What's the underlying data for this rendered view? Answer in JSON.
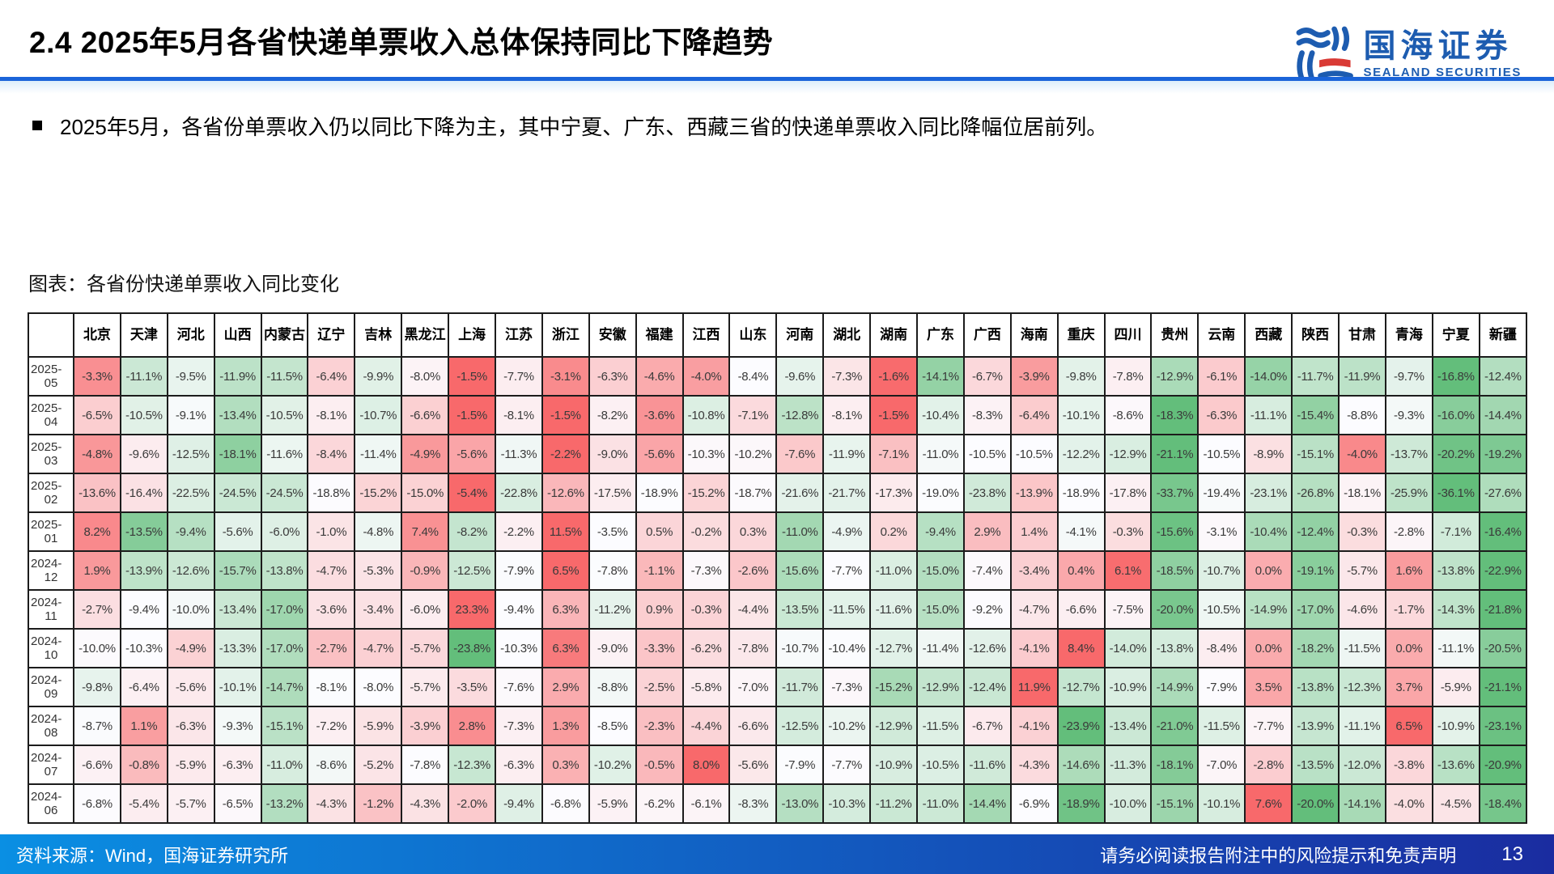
{
  "header": {
    "title": "2.4 2025年5月各省快递单票收入总体保持同比下降趋势",
    "logo_cn": "国海证券",
    "logo_en": "SEALAND SECURITIES"
  },
  "bullet": "2025年5月，各省份单票收入仍以同比下降为主，其中宁夏、广东、西藏三省的快递单票收入同比降幅位居前列。",
  "chart_label": "图表：各省份快递单票收入同比变化",
  "footer": {
    "source": "资料来源：Wind，国海证券研究所",
    "disclaimer": "请务必阅读报告附注中的风险提示和免责声明",
    "page": "13"
  },
  "colors": {
    "accent_blue": "#1B64D9",
    "logo_blue": "#1D5CB0",
    "logo_red": "#D93A35",
    "footer_left": "#0A8FE3",
    "footer_right": "#1A2CA0",
    "heat_high": "#F8696B",
    "heat_mid": "#FCFCFF",
    "heat_low": "#63BE7B"
  },
  "chart_data": {
    "type": "heatmap",
    "title": "各省份快递单票收入同比变化",
    "unit": "percent",
    "color_scale": "per-row: max=red #F8696B, median=white, min=green #63BE7B",
    "columns": [
      "北京",
      "天津",
      "河北",
      "山西",
      "内蒙古",
      "辽宁",
      "吉林",
      "黑龙江",
      "上海",
      "江苏",
      "浙江",
      "安徽",
      "福建",
      "江西",
      "山东",
      "河南",
      "湖北",
      "湖南",
      "广东",
      "广西",
      "海南",
      "重庆",
      "四川",
      "贵州",
      "云南",
      "西藏",
      "陕西",
      "甘肃",
      "青海",
      "宁夏",
      "新疆"
    ],
    "rows": [
      {
        "label": "2025-05",
        "values": [
          -3.3,
          -11.1,
          -9.5,
          -11.9,
          -11.5,
          -6.4,
          -9.9,
          -8.0,
          -1.5,
          -7.7,
          -3.1,
          -6.3,
          -4.6,
          -4.0,
          -8.4,
          -9.6,
          -7.3,
          -1.6,
          -14.1,
          -6.7,
          -3.9,
          -9.8,
          -7.8,
          -12.9,
          -6.1,
          -14.0,
          -11.7,
          -11.9,
          -9.7,
          -16.8,
          -12.4
        ]
      },
      {
        "label": "2025-04",
        "values": [
          -6.5,
          -10.5,
          -9.1,
          -13.4,
          -10.5,
          -8.1,
          -10.7,
          -6.6,
          -1.5,
          -8.1,
          -1.5,
          -8.2,
          -3.6,
          -10.8,
          -7.1,
          -12.8,
          -8.1,
          -1.5,
          -10.4,
          -8.3,
          -6.4,
          -10.1,
          -8.6,
          -18.3,
          -6.3,
          -11.1,
          -15.4,
          -8.8,
          -9.3,
          -16.0,
          -14.4
        ]
      },
      {
        "label": "2025-03",
        "values": [
          -4.8,
          -9.6,
          -12.5,
          -18.1,
          -11.6,
          -8.4,
          -11.4,
          -4.9,
          -5.6,
          -11.3,
          -2.2,
          -9.0,
          -5.6,
          -10.3,
          -10.2,
          -7.6,
          -11.9,
          -7.1,
          -11.0,
          -10.5,
          -10.5,
          -12.2,
          -12.9,
          -21.1,
          -10.5,
          -8.9,
          -15.1,
          -4.0,
          -13.7,
          -20.2,
          -19.2
        ]
      },
      {
        "label": "2025-02",
        "values": [
          -13.6,
          -16.4,
          -22.5,
          -24.5,
          -24.5,
          -18.8,
          -15.2,
          -15.0,
          -5.4,
          -22.8,
          -12.6,
          -17.5,
          -18.9,
          -15.2,
          -18.7,
          -21.6,
          -21.7,
          -17.3,
          -19.0,
          -23.8,
          -13.9,
          -18.9,
          -17.8,
          -33.7,
          -19.4,
          -23.1,
          -26.8,
          -18.1,
          -25.9,
          -36.1,
          -27.6
        ]
      },
      {
        "label": "2025-01",
        "values": [
          8.2,
          -13.5,
          -9.4,
          -5.6,
          -6.0,
          -1.0,
          -4.8,
          7.4,
          -8.2,
          -2.2,
          11.5,
          -3.5,
          0.5,
          -0.2,
          0.3,
          -11.0,
          -4.9,
          0.2,
          -9.4,
          2.9,
          1.4,
          -4.1,
          -0.3,
          -15.6,
          -3.1,
          -10.4,
          -12.4,
          -0.3,
          -2.8,
          -7.1,
          -16.4
        ]
      },
      {
        "label": "2024-12",
        "values": [
          1.9,
          -13.9,
          -12.6,
          -15.7,
          -13.8,
          -4.7,
          -5.3,
          -0.9,
          -12.5,
          -7.9,
          6.5,
          -7.8,
          -1.1,
          -7.3,
          -2.6,
          -15.6,
          -7.7,
          -11.0,
          -15.0,
          -7.4,
          -3.4,
          0.4,
          6.1,
          -18.5,
          -10.7,
          0.0,
          -19.1,
          -5.7,
          1.6,
          -13.8,
          -22.9
        ]
      },
      {
        "label": "2024-11",
        "values": [
          -2.7,
          -9.4,
          -10.0,
          -13.4,
          -17.0,
          -3.6,
          -3.4,
          -6.0,
          23.3,
          -9.4,
          6.3,
          -11.2,
          0.9,
          -0.3,
          -4.4,
          -13.5,
          -11.5,
          -11.6,
          -15.0,
          -9.2,
          -4.7,
          -6.6,
          -7.5,
          -20.0,
          -10.5,
          -14.9,
          -17.0,
          -4.6,
          -1.7,
          -14.3,
          -21.8
        ]
      },
      {
        "label": "2024-10",
        "values": [
          -10.0,
          -10.3,
          -4.9,
          -13.3,
          -17.0,
          -2.7,
          -4.7,
          -5.7,
          -23.8,
          -10.3,
          6.3,
          -9.0,
          -3.3,
          -6.2,
          -7.8,
          -10.7,
          -10.4,
          -12.7,
          -11.4,
          -12.6,
          -4.1,
          8.4,
          -14.0,
          -13.8,
          -8.4,
          0.0,
          -18.2,
          -11.5,
          0.0,
          -11.1,
          -20.5
        ]
      },
      {
        "label": "2024-09",
        "values": [
          -9.8,
          -6.4,
          -5.6,
          -10.1,
          -14.7,
          -8.1,
          -8.0,
          -5.7,
          -3.5,
          -7.6,
          2.9,
          -8.8,
          -2.5,
          -5.8,
          -7.0,
          -11.7,
          -7.3,
          -15.2,
          -12.9,
          -12.4,
          11.9,
          -12.7,
          -10.9,
          -14.9,
          -7.9,
          3.5,
          -13.8,
          -12.3,
          3.7,
          -5.9,
          -21.1
        ]
      },
      {
        "label": "2024-08",
        "values": [
          -8.7,
          1.1,
          -6.3,
          -9.3,
          -15.1,
          -7.2,
          -5.9,
          -3.9,
          2.8,
          -7.3,
          1.3,
          -8.5,
          -2.3,
          -4.4,
          -6.6,
          -12.5,
          -10.2,
          -12.9,
          -11.5,
          -6.7,
          -4.1,
          -23.9,
          -13.4,
          -21.0,
          -11.5,
          -7.7,
          -13.9,
          -11.1,
          6.5,
          -10.9,
          -23.1
        ]
      },
      {
        "label": "2024-07",
        "values": [
          -6.6,
          -0.8,
          -5.9,
          -6.3,
          -11.0,
          -8.6,
          -5.2,
          -7.8,
          -12.3,
          -6.3,
          0.3,
          -10.2,
          -0.5,
          8.0,
          -5.6,
          -7.9,
          -7.7,
          -10.9,
          -10.5,
          -11.6,
          -4.3,
          -14.6,
          -11.3,
          -18.1,
          -7.0,
          -2.8,
          -13.5,
          -12.0,
          -3.8,
          -13.6,
          -20.9
        ]
      },
      {
        "label": "2024-06",
        "values": [
          -6.8,
          -5.4,
          -5.7,
          -6.5,
          -13.2,
          -4.3,
          -1.2,
          -4.3,
          -2.0,
          -9.4,
          -6.8,
          -5.9,
          -6.2,
          -6.1,
          -8.3,
          -13.0,
          -10.3,
          -11.2,
          -11.0,
          -14.4,
          -6.9,
          -18.9,
          -10.0,
          -15.1,
          -10.1,
          7.6,
          -20.0,
          -14.1,
          -4.0,
          -4.5,
          -18.4
        ]
      }
    ]
  }
}
